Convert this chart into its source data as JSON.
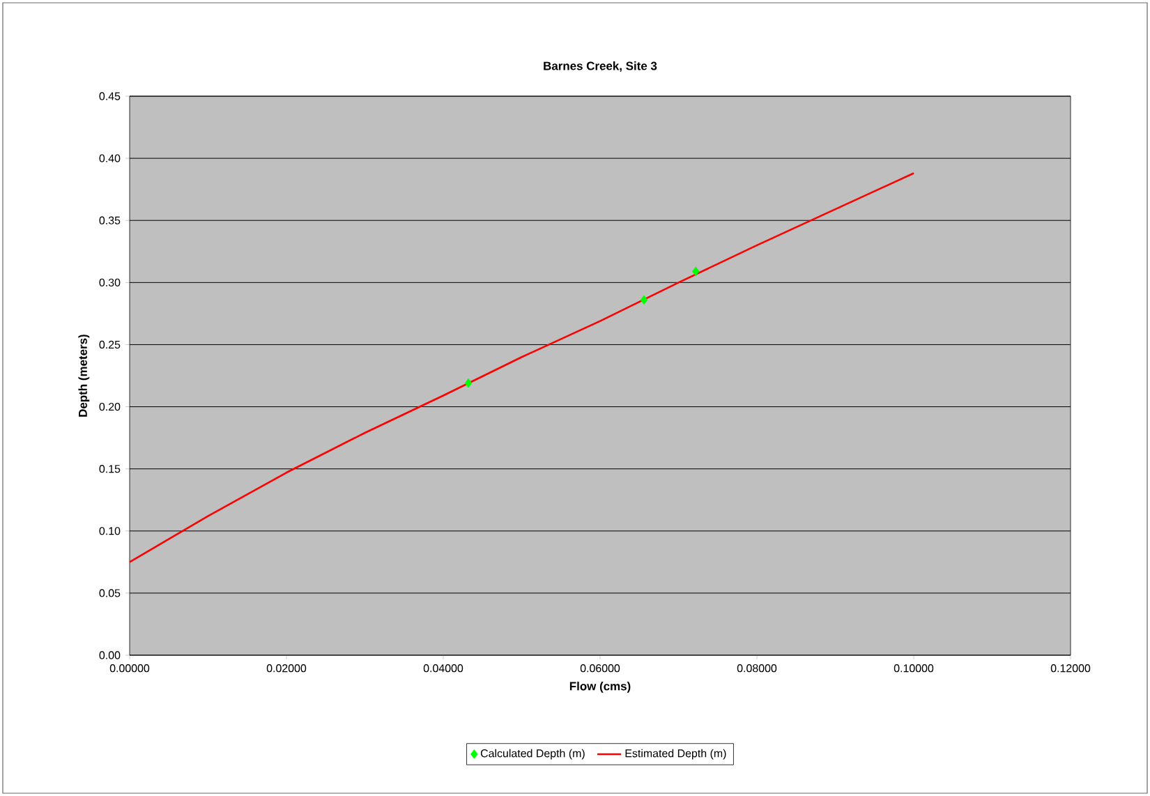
{
  "chart_data": {
    "type": "scatter",
    "title": "Barnes Creek, Site 3",
    "xlabel": "Flow (cms)",
    "ylabel": "Depth (meters)",
    "xlim": [
      0,
      0.12
    ],
    "ylim": [
      0,
      0.45
    ],
    "xticks": [
      {
        "value": 0,
        "label": "0.00000"
      },
      {
        "value": 0.02,
        "label": "0.02000"
      },
      {
        "value": 0.04,
        "label": "0.04000"
      },
      {
        "value": 0.06,
        "label": "0.06000"
      },
      {
        "value": 0.08,
        "label": "0.08000"
      },
      {
        "value": 0.1,
        "label": "0.10000"
      },
      {
        "value": 0.12,
        "label": "0.12000"
      }
    ],
    "yticks": [
      {
        "value": 0,
        "label": "0.00"
      },
      {
        "value": 0.05,
        "label": "0.05"
      },
      {
        "value": 0.1,
        "label": "0.10"
      },
      {
        "value": 0.15,
        "label": "0.15"
      },
      {
        "value": 0.2,
        "label": "0.20"
      },
      {
        "value": 0.25,
        "label": "0.25"
      },
      {
        "value": 0.3,
        "label": "0.30"
      },
      {
        "value": 0.35,
        "label": "0.35"
      },
      {
        "value": 0.4,
        "label": "0.40"
      },
      {
        "value": 0.45,
        "label": "0.45"
      }
    ],
    "grid": "y",
    "legend": "bottom",
    "series": [
      {
        "name": "Calculated Depth (m)",
        "marker": "diamond",
        "color": "#00ff00",
        "x": [
          0.0432,
          0.0656,
          0.0722
        ],
        "values": [
          0.219,
          0.286,
          0.309
        ]
      },
      {
        "name": "Estimated Depth (m)",
        "type": "line",
        "marker": "none",
        "line_style": "solid",
        "color": "#ff0000",
        "x": [
          0,
          0.01,
          0.02,
          0.03,
          0.04,
          0.05,
          0.06,
          0.07,
          0.08,
          0.09,
          0.1
        ],
        "values": [
          0.075,
          0.112,
          0.147,
          0.179,
          0.209,
          0.24,
          0.269,
          0.3,
          0.33,
          0.359,
          0.388
        ]
      }
    ]
  }
}
